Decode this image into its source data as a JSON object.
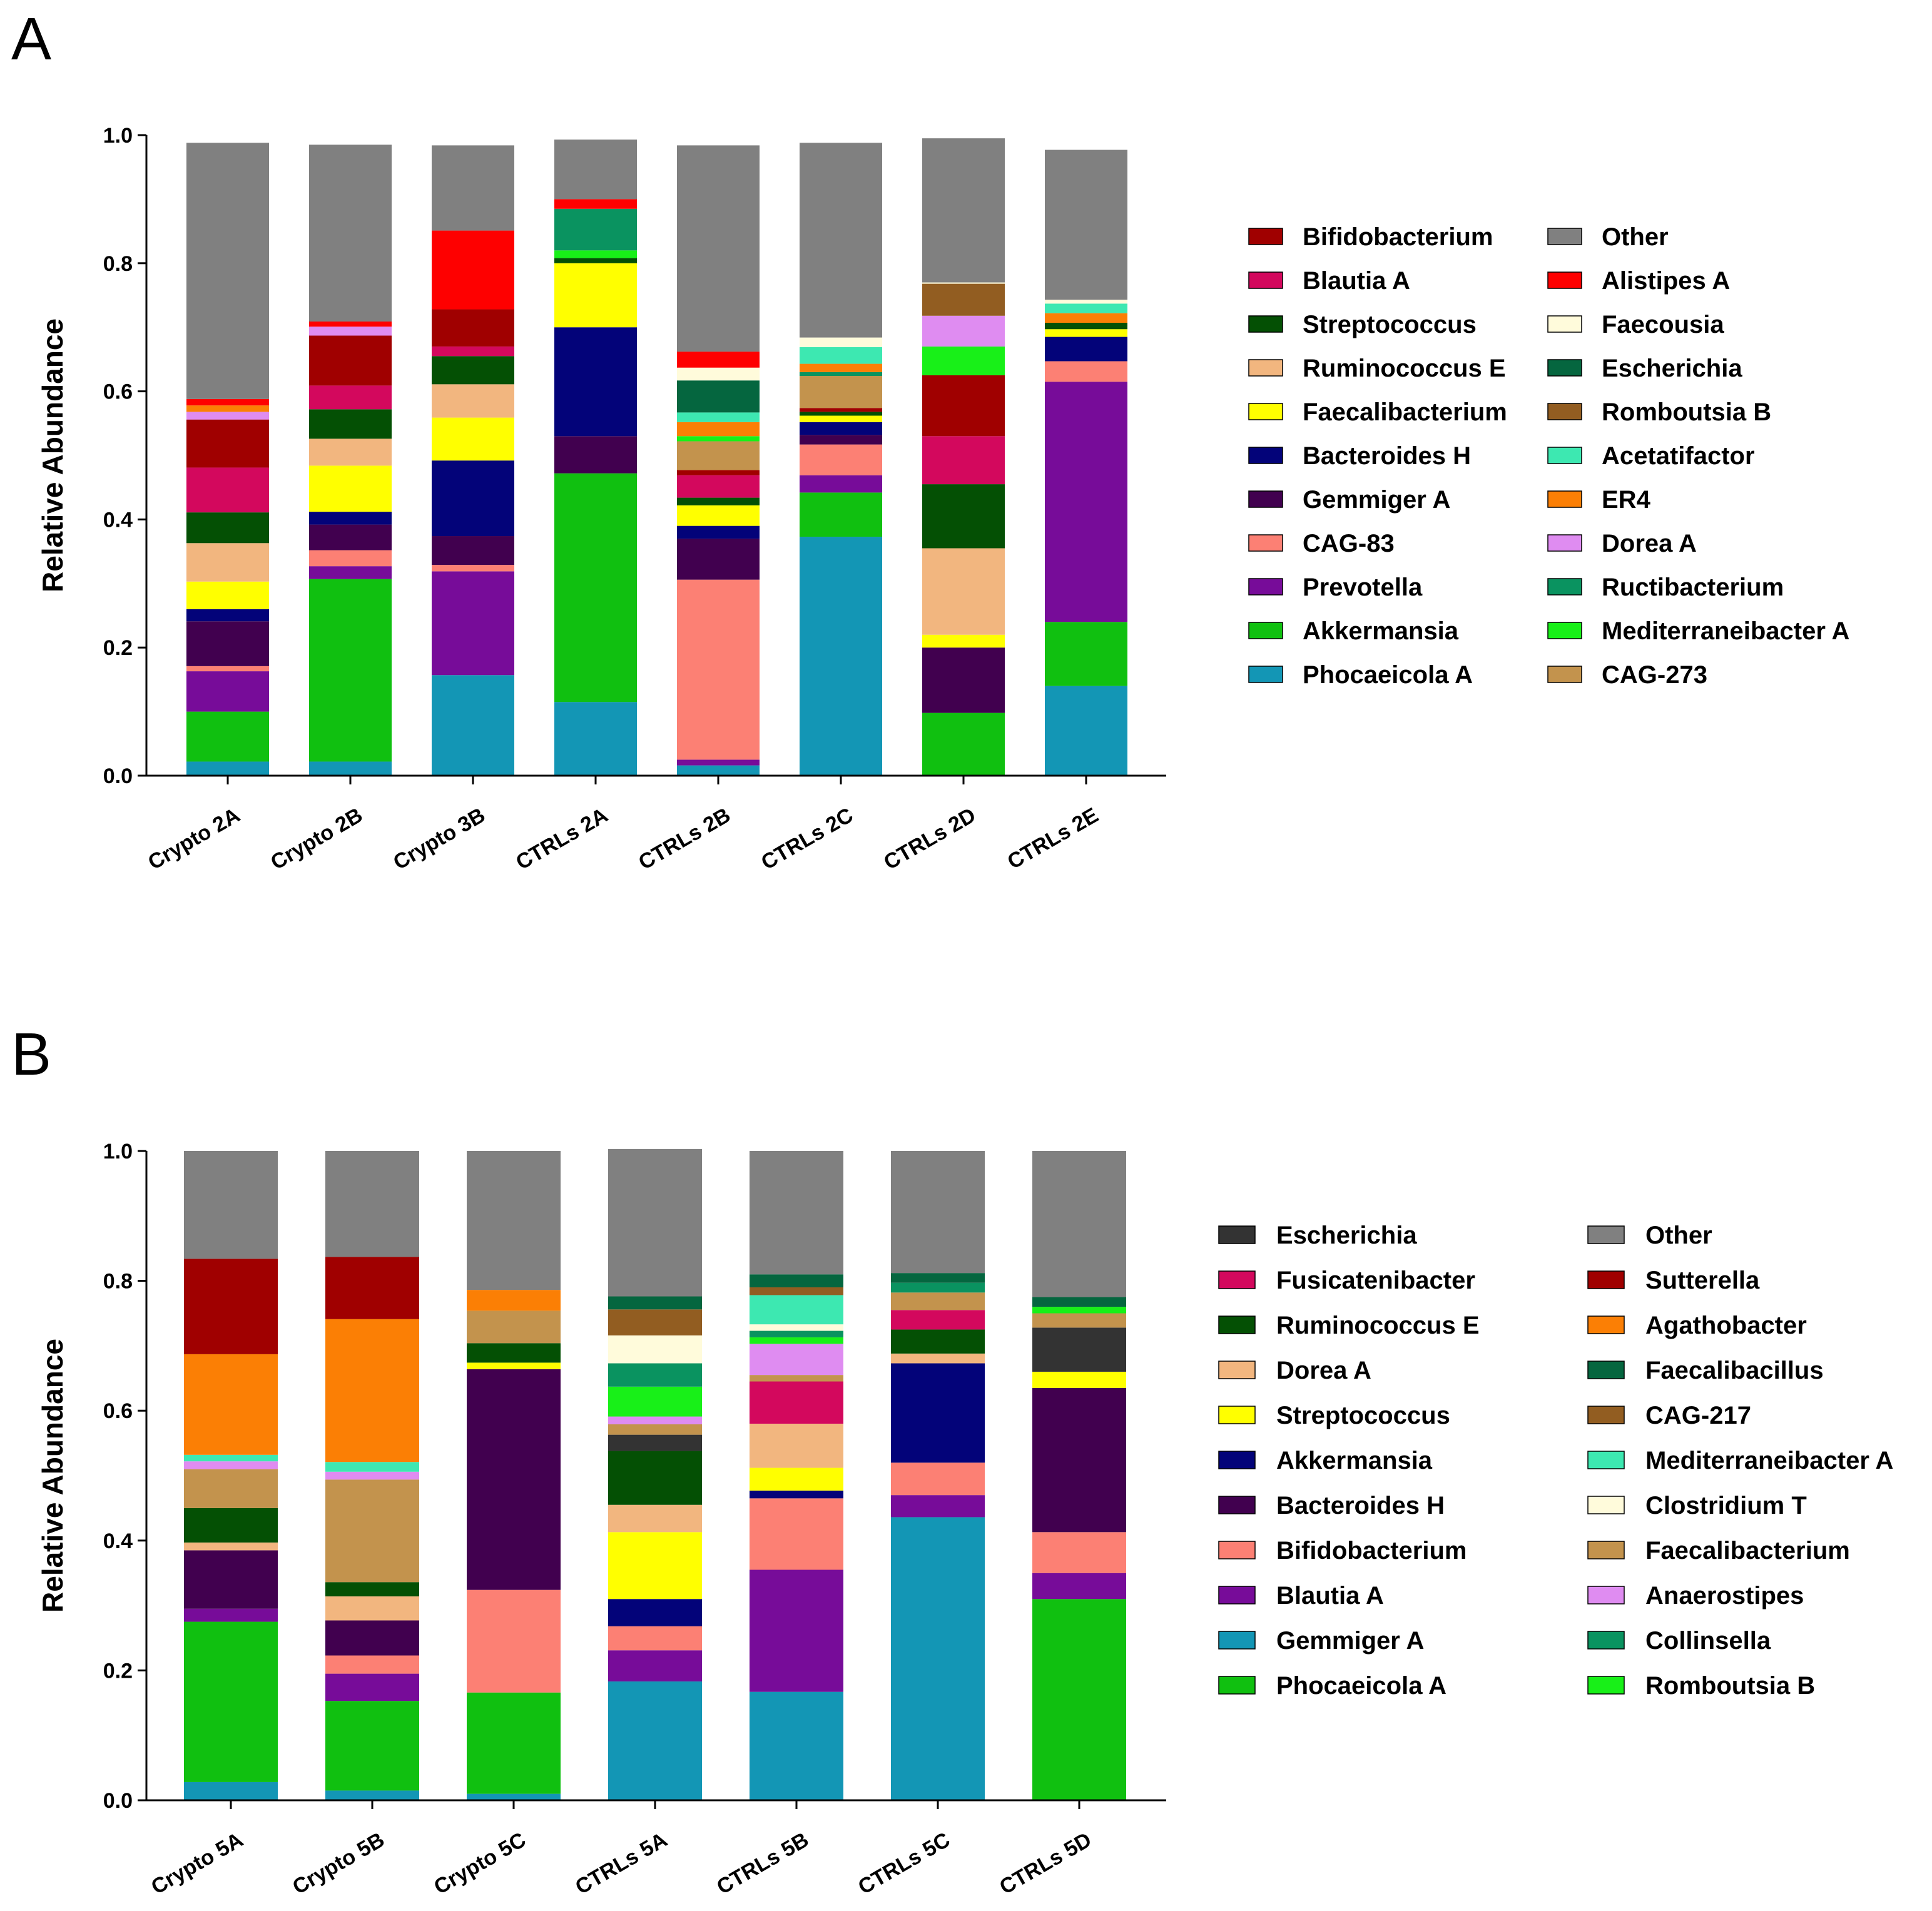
{
  "figure": {
    "panels": [
      "A",
      "B"
    ]
  },
  "chart_data": [
    {
      "type": "bar",
      "stacked": true,
      "panel_label": "A",
      "ylabel": "Relative Abundance",
      "xlabel": "",
      "ylim": [
        0,
        1
      ],
      "yticks": [
        "0.0",
        "0.2",
        "0.4",
        "0.6",
        "0.8",
        "1.0"
      ],
      "categories": [
        "Crypto 2A",
        "Crypto 2B",
        "Crypto 3B",
        "CTRLs 2A",
        "CTRLs 2B",
        "CTRLs 2C",
        "CTRLs 2D",
        "CTRLs 2E"
      ],
      "series": [
        {
          "name": "Phocaeicola A",
          "color": "#1396b5",
          "values": [
            0.022,
            0.022,
            0.157,
            0.115,
            0.016,
            0.373,
            0.0,
            0.14
          ]
        },
        {
          "name": "Akkermansia",
          "color": "#10c010",
          "values": [
            0.078,
            0.285,
            0.0,
            0.357,
            0.0,
            0.069,
            0.098,
            0.1
          ]
        },
        {
          "name": "Prevotella",
          "color": "#770c99",
          "values": [
            0.063,
            0.02,
            0.162,
            0.0,
            0.009,
            0.027,
            0.0,
            0.375
          ]
        },
        {
          "name": "CAG-83",
          "color": "#fc8074",
          "values": [
            0.008,
            0.025,
            0.01,
            0.0,
            0.281,
            0.048,
            0.0,
            0.032
          ]
        },
        {
          "name": "Gemmiger A",
          "color": "#41004f",
          "values": [
            0.07,
            0.04,
            0.045,
            0.058,
            0.064,
            0.015,
            0.102,
            0.0
          ]
        },
        {
          "name": "Bacteroides H",
          "color": "#030379",
          "values": [
            0.019,
            0.02,
            0.118,
            0.17,
            0.02,
            0.02,
            0.0,
            0.038
          ]
        },
        {
          "name": "Faecalibacterium",
          "color": "#ffff00",
          "values": [
            0.043,
            0.072,
            0.067,
            0.1,
            0.032,
            0.01,
            0.02,
            0.012
          ]
        },
        {
          "name": "Ruminococcus E",
          "color": "#f2b67f",
          "values": [
            0.06,
            0.042,
            0.052,
            0.0,
            0.0,
            0.0,
            0.135,
            0.0
          ]
        },
        {
          "name": "Streptococcus",
          "color": "#045004",
          "values": [
            0.048,
            0.046,
            0.044,
            0.008,
            0.012,
            0.006,
            0.1,
            0.01
          ]
        },
        {
          "name": "Blautia A",
          "color": "#d3085d",
          "values": [
            0.07,
            0.037,
            0.015,
            0.0,
            0.035,
            0.0,
            0.075,
            0.0
          ]
        },
        {
          "name": "Bifidobacterium",
          "color": "#a00000",
          "values": [
            0.075,
            0.078,
            0.058,
            0.0,
            0.008,
            0.006,
            0.095,
            0.0
          ]
        },
        {
          "name": "CAG-273",
          "color": "#c3934d",
          "values": [
            0.0,
            0.0,
            0.0,
            0.0,
            0.045,
            0.05,
            0.0,
            0.0
          ]
        },
        {
          "name": "Mediterraneibacter A",
          "color": "#18f018",
          "values": [
            0.0,
            0.0,
            0.0,
            0.012,
            0.008,
            0.0,
            0.045,
            0.0
          ]
        },
        {
          "name": "Ructibacterium",
          "color": "#0a9360",
          "values": [
            0.0,
            0.0,
            0.0,
            0.065,
            0.0,
            0.006,
            0.0,
            0.0
          ]
        },
        {
          "name": "Dorea A",
          "color": "#df8cf1",
          "values": [
            0.012,
            0.014,
            0.0,
            0.0,
            0.0,
            0.0,
            0.048,
            0.0
          ]
        },
        {
          "name": "ER4",
          "color": "#fb7f05",
          "values": [
            0.01,
            0.0,
            0.0,
            0.0,
            0.022,
            0.013,
            0.0,
            0.015
          ]
        },
        {
          "name": "Acetatifactor",
          "color": "#3de8b1",
          "values": [
            0.0,
            0.0,
            0.0,
            0.0,
            0.015,
            0.026,
            0.0,
            0.015
          ]
        },
        {
          "name": "Romboutsia B",
          "color": "#925d21",
          "values": [
            0.0,
            0.0,
            0.0,
            0.0,
            0.0,
            0.0,
            0.05,
            0.0
          ]
        },
        {
          "name": "Escherichia",
          "color": "#05663f",
          "values": [
            0.0,
            0.0,
            0.0,
            0.0,
            0.05,
            0.0,
            0.0,
            0.0
          ]
        },
        {
          "name": "Faecousia",
          "color": "#fffbdb",
          "values": [
            0.0,
            0.0,
            0.0,
            0.0,
            0.02,
            0.015,
            0.002,
            0.006
          ]
        },
        {
          "name": "Alistipes A",
          "color": "#fe0000",
          "values": [
            0.01,
            0.008,
            0.123,
            0.015,
            0.025,
            0.0,
            0.0,
            0.0
          ]
        },
        {
          "name": "Other",
          "color": "#808080",
          "values": [
            0.4,
            0.276,
            0.133,
            0.093,
            0.322,
            0.304,
            0.225,
            0.234
          ]
        }
      ],
      "legend_columns": [
        [
          "Bifidobacterium",
          "Blautia A",
          "Streptococcus",
          "Ruminococcus E",
          "Faecalibacterium",
          "Bacteroides H",
          "Gemmiger A",
          "CAG-83",
          "Prevotella",
          "Akkermansia",
          "Phocaeicola A"
        ],
        [
          "Other",
          "Alistipes A",
          "Faecousia",
          "Escherichia",
          "Romboutsia B",
          "Acetatifactor",
          "ER4",
          "Dorea A",
          "Ructibacterium",
          "Mediterraneibacter A",
          "CAG-273"
        ]
      ]
    },
    {
      "type": "bar",
      "stacked": true,
      "panel_label": "B",
      "ylabel": "Relative Abundance",
      "xlabel": "",
      "ylim": [
        0,
        1
      ],
      "yticks": [
        "0.0",
        "0.2",
        "0.4",
        "0.6",
        "0.8",
        "1.0"
      ],
      "categories": [
        "Crypto 5A",
        "Crypto 5B",
        "Crypto 5C",
        "CTRLs 5A",
        "CTRLs 5B",
        "CTRLs 5C",
        "CTRLs 5D"
      ],
      "series": [
        {
          "name": "Gemmiger A",
          "color": "#1396b5",
          "values": [
            0.028,
            0.015,
            0.01,
            0.183,
            0.167,
            0.436,
            0.0
          ]
        },
        {
          "name": "Phocaeicola A",
          "color": "#10c010",
          "values": [
            0.247,
            0.138,
            0.156,
            0.0,
            0.0,
            0.0,
            0.31
          ]
        },
        {
          "name": "Blautia A",
          "color": "#770c99",
          "values": [
            0.02,
            0.042,
            0.0,
            0.048,
            0.188,
            0.034,
            0.04
          ]
        },
        {
          "name": "Bifidobacterium",
          "color": "#fc8074",
          "values": [
            0.0,
            0.028,
            0.158,
            0.037,
            0.11,
            0.05,
            0.063
          ]
        },
        {
          "name": "Bacteroides H",
          "color": "#41004f",
          "values": [
            0.09,
            0.054,
            0.34,
            0.0,
            0.0,
            0.0,
            0.222
          ]
        },
        {
          "name": "Akkermansia",
          "color": "#030379",
          "values": [
            0.0,
            0.0,
            0.0,
            0.042,
            0.012,
            0.153,
            0.0
          ]
        },
        {
          "name": "Streptococcus",
          "color": "#ffff00",
          "values": [
            0.0,
            0.0,
            0.01,
            0.103,
            0.035,
            0.0,
            0.025
          ]
        },
        {
          "name": "Dorea A",
          "color": "#f2b67f",
          "values": [
            0.012,
            0.037,
            0.0,
            0.042,
            0.068,
            0.015,
            0.0
          ]
        },
        {
          "name": "Ruminococcus E",
          "color": "#045004",
          "values": [
            0.053,
            0.022,
            0.03,
            0.083,
            0.0,
            0.037,
            0.0
          ]
        },
        {
          "name": "Fusicatenibacter",
          "color": "#d3085d",
          "values": [
            0.0,
            0.0,
            0.0,
            0.0,
            0.065,
            0.03,
            0.0
          ]
        },
        {
          "name": "Escherichia",
          "color": "#333333",
          "values": [
            0.0,
            0.0,
            0.0,
            0.025,
            0.0,
            0.0,
            0.068
          ]
        },
        {
          "name": "Faecalibacterium",
          "color": "#c3934d",
          "values": [
            0.06,
            0.158,
            0.05,
            0.016,
            0.01,
            0.027,
            0.022
          ]
        },
        {
          "name": "Anaerostipes",
          "color": "#df8cf1",
          "values": [
            0.012,
            0.012,
            0.0,
            0.012,
            0.048,
            0.0,
            0.0
          ]
        },
        {
          "name": "Romboutsia B",
          "color": "#18f018",
          "values": [
            0.0,
            0.0,
            0.0,
            0.046,
            0.01,
            0.0,
            0.01
          ]
        },
        {
          "name": "Collinsella",
          "color": "#0a9360",
          "values": [
            0.0,
            0.0,
            0.0,
            0.036,
            0.01,
            0.015,
            0.0
          ]
        },
        {
          "name": "Clostridium T",
          "color": "#fffbdb",
          "values": [
            0.0,
            0.0,
            0.0,
            0.043,
            0.01,
            0.0,
            0.0
          ]
        },
        {
          "name": "Mediterraneibacter A",
          "color": "#3de8b1",
          "values": [
            0.01,
            0.015,
            0.0,
            0.0,
            0.045,
            0.0,
            0.0
          ]
        },
        {
          "name": "CAG-217",
          "color": "#925d21",
          "values": [
            0.0,
            0.0,
            0.0,
            0.04,
            0.012,
            0.0,
            0.0
          ]
        },
        {
          "name": "Faecalibacillus",
          "color": "#05663f",
          "values": [
            0.0,
            0.0,
            0.0,
            0.02,
            0.02,
            0.015,
            0.015
          ]
        },
        {
          "name": "Agathobacter",
          "color": "#fb7f05",
          "values": [
            0.155,
            0.22,
            0.032,
            0.0,
            0.0,
            0.0,
            0.0
          ]
        },
        {
          "name": "Sutterella",
          "color": "#a00000",
          "values": [
            0.147,
            0.096,
            0.0,
            0.0,
            0.0,
            0.0,
            0.0
          ]
        },
        {
          "name": "Other",
          "color": "#808080",
          "values": [
            0.166,
            0.163,
            0.214,
            0.227,
            0.19,
            0.188,
            0.225
          ]
        }
      ],
      "legend_columns": [
        [
          "Escherichia",
          "Fusicatenibacter",
          "Ruminococcus E",
          "Dorea A",
          "Streptococcus",
          "Akkermansia",
          "Bacteroides H",
          "Bifidobacterium",
          "Blautia A",
          "Gemmiger A",
          "Phocaeicola A"
        ],
        [
          "Other",
          "Sutterella",
          "Agathobacter",
          "Faecalibacillus",
          "CAG-217",
          "Mediterraneibacter A",
          "Clostridium T",
          "Faecalibacterium",
          "Anaerostipes",
          "Collinsella",
          "Romboutsia B"
        ]
      ]
    }
  ]
}
